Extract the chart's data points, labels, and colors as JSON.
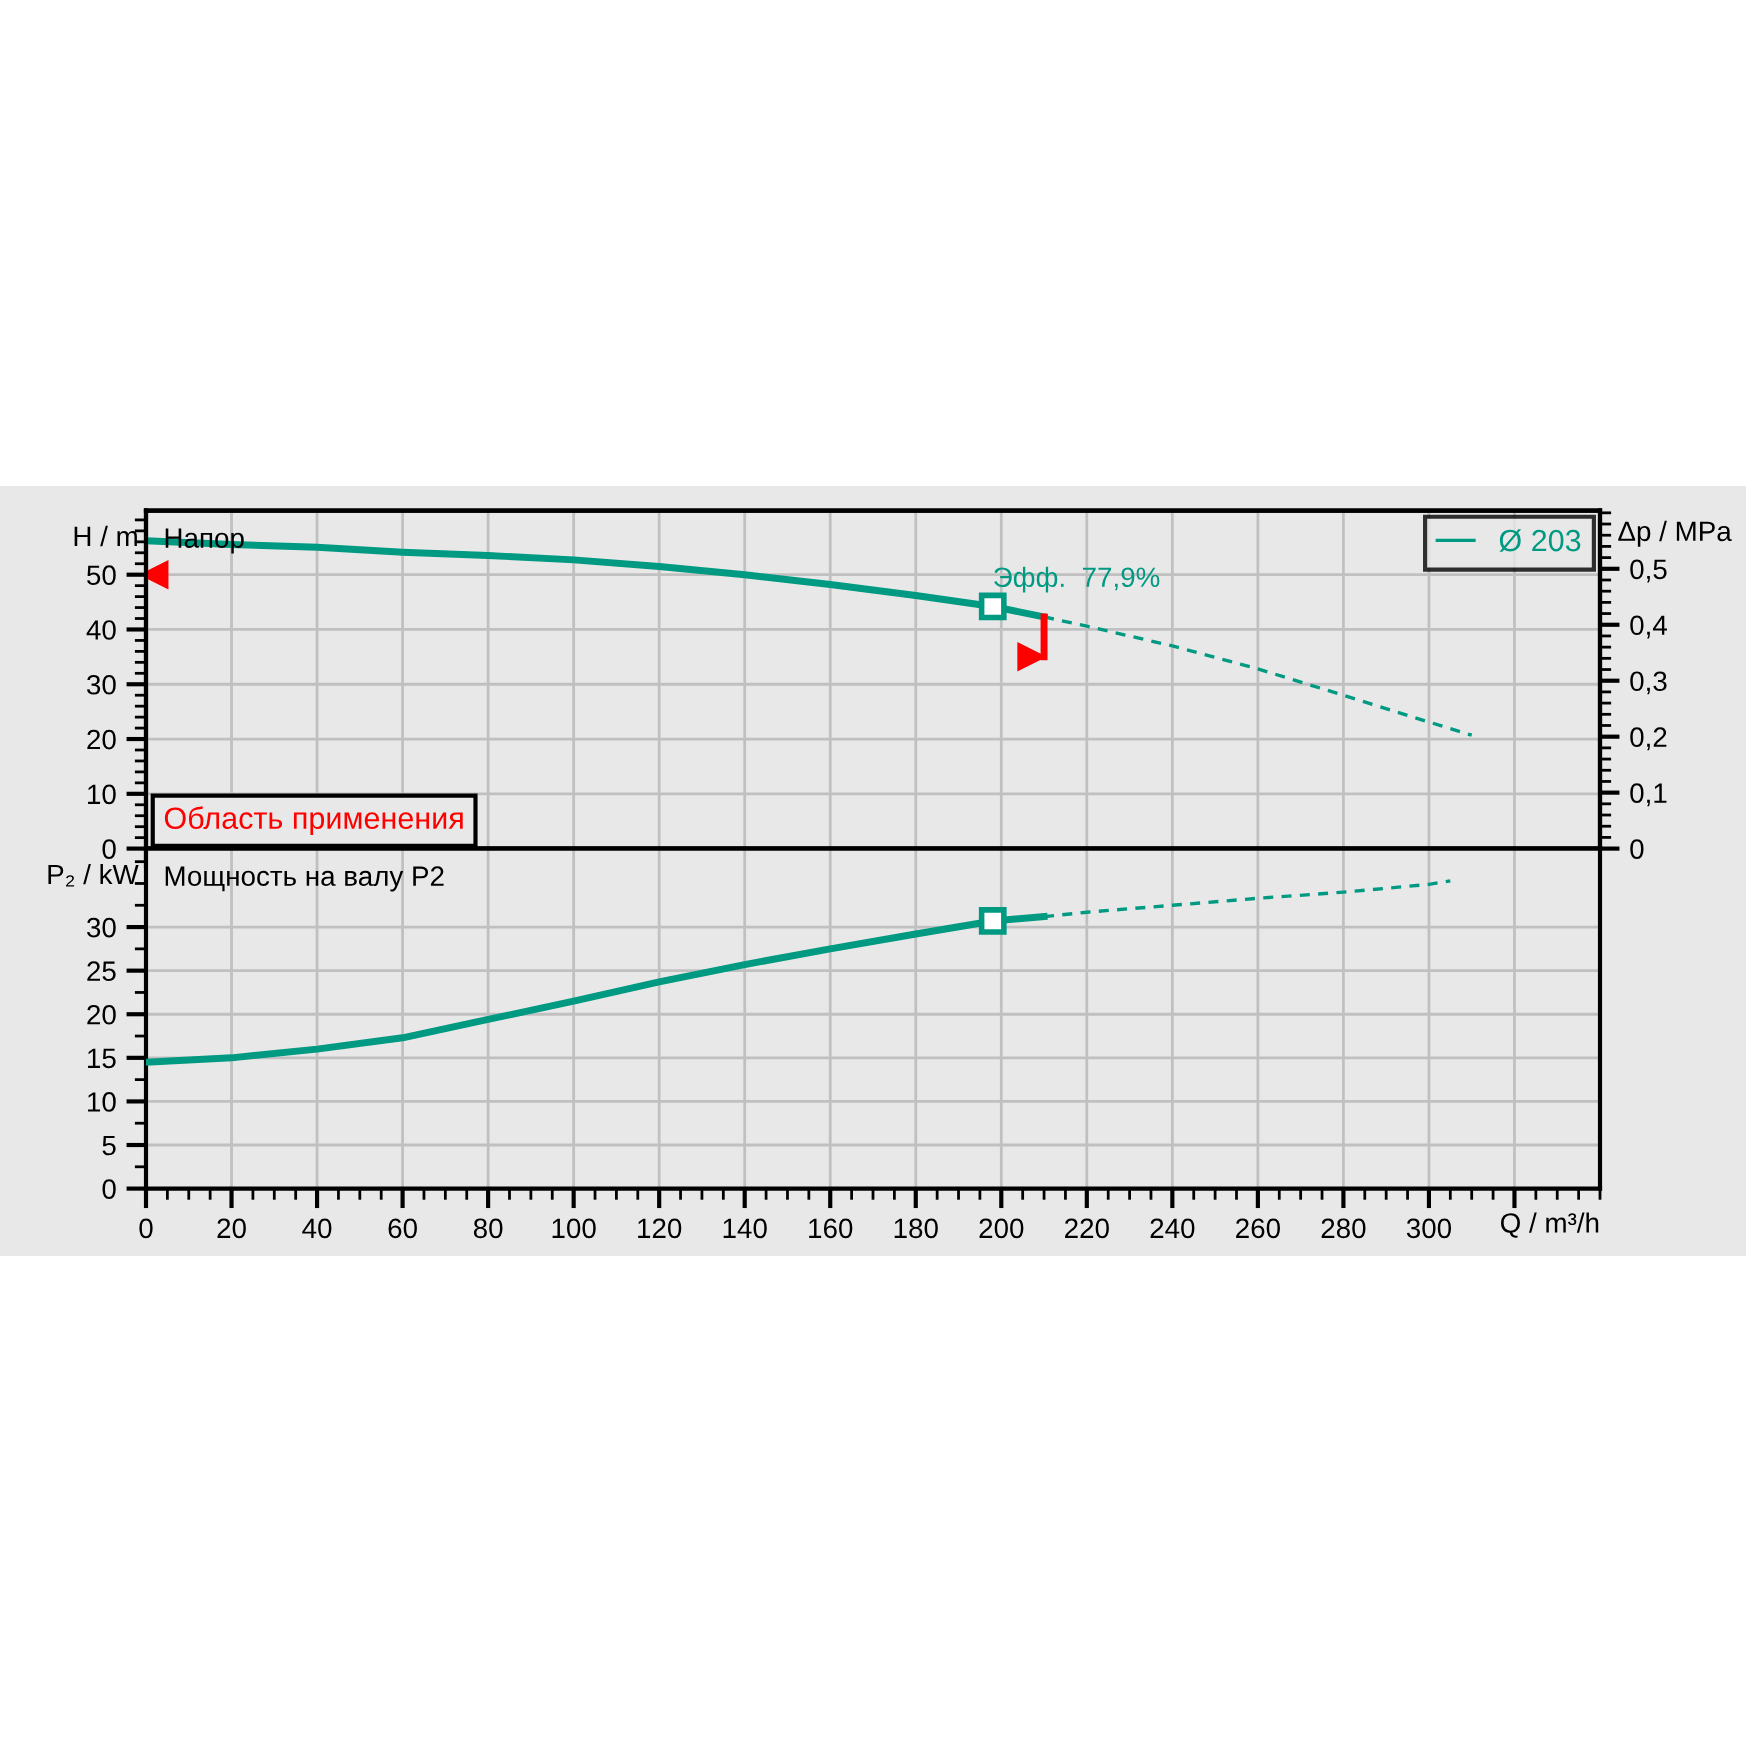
{
  "chart_data": [
    {
      "type": "line",
      "ylabel": "H / m",
      "y2label": "Δp / MPa",
      "xlim": [
        0,
        340
      ],
      "xticks": [
        0,
        20,
        40,
        60,
        80,
        100,
        120,
        140,
        160,
        180,
        200,
        220,
        240,
        260,
        280,
        300,
        320
      ],
      "ylim": [
        0,
        61.7
      ],
      "yticks": [
        0,
        10,
        20,
        30,
        40,
        50
      ],
      "y2lim": [
        0,
        0.604
      ],
      "y2ticks": [
        0,
        {
          "value": 0.1,
          "label": "0,1"
        },
        {
          "value": 0.2,
          "label": "0,2"
        },
        {
          "value": 0.3,
          "label": "0,3"
        },
        {
          "value": 0.4,
          "label": "0,4"
        },
        {
          "value": 0.5,
          "label": "0,5"
        }
      ],
      "tick_labels": "y",
      "grid": true,
      "legend": "top right",
      "annotations": [
        "Напор",
        "Область применения",
        {
          "text": "Эфф.  77,9%",
          "x": 198,
          "y": 44.2
        }
      ],
      "series": [
        {
          "name": "Ø 203",
          "line_style": "solid",
          "color": "#009982",
          "x": [
            0,
            20,
            40,
            60,
            80,
            100,
            120,
            140,
            160,
            170,
            180,
            198,
            210
          ],
          "values": [
            56.2,
            55.5,
            55.0,
            54.1,
            53.5,
            52.7,
            51.5,
            50.0,
            48.2,
            47.2,
            46.2,
            44.2,
            42.3
          ]
        },
        {
          "line_style": "dashed",
          "color": "#009982",
          "x": [
            210,
            220,
            240,
            260,
            280,
            300,
            310
          ],
          "values": [
            42.3,
            40.6,
            37.0,
            32.8,
            28.0,
            23.1,
            20.7
          ]
        },
        {
          "type": "scatter",
          "marker": "square",
          "color": "#009982",
          "x": [
            198
          ],
          "values": [
            44.2
          ]
        },
        {
          "line_style": "solid",
          "color": "#ff0000",
          "x": [
            210,
            210
          ],
          "values": [
            35,
            42.3
          ]
        },
        {
          "type": "scatter",
          "marker": "triangle",
          "color": "#ff0000",
          "x": [
            2,
            207
          ],
          "values": [
            50,
            35
          ]
        }
      ]
    },
    {
      "type": "line",
      "ylabel": "P₂ / kW",
      "xlabel": "Q / m³/h",
      "xlim": [
        0,
        340
      ],
      "xticks": [
        0,
        20,
        40,
        60,
        80,
        100,
        120,
        140,
        160,
        180,
        200,
        220,
        240,
        260,
        280,
        300,
        {
          "value": 320,
          "label": null
        }
      ],
      "ylim": [
        0,
        39
      ],
      "yticks": [
        0,
        5,
        10,
        15,
        20,
        25,
        30
      ],
      "grid": true,
      "annotations": [
        "Мощность на валу P2"
      ],
      "series": [
        {
          "line_style": "solid",
          "color": "#009982",
          "x": [
            0,
            20,
            40,
            60,
            80,
            100,
            120,
            140,
            160,
            180,
            198,
            210
          ],
          "values": [
            14.5,
            15.0,
            16.0,
            17.3,
            19.4,
            21.5,
            23.7,
            25.7,
            27.5,
            29.2,
            30.7,
            31.2
          ]
        },
        {
          "line_style": "dashed",
          "color": "#009982",
          "x": [
            210,
            220,
            240,
            260,
            280,
            300,
            305
          ],
          "values": [
            31.2,
            31.7,
            32.5,
            33.3,
            34.0,
            34.9,
            35.3
          ]
        },
        {
          "type": "scatter",
          "marker": "square",
          "color": "#009982",
          "x": [
            198
          ],
          "values": [
            30.7
          ]
        }
      ]
    }
  ]
}
